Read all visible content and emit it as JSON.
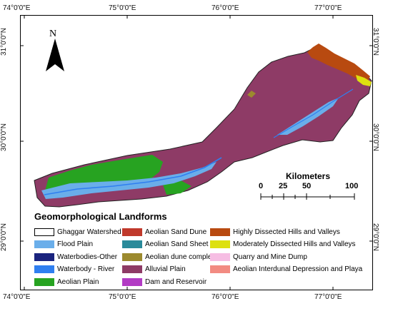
{
  "axes": {
    "top": [
      "74°0'0\"E",
      "75°0'0\"E",
      "76°0'0\"E",
      "77°0'0\"E"
    ],
    "bottom": [
      "74°0'0\"E",
      "75°0'0\"E",
      "76°0'0\"E",
      "77°0'0\"E"
    ],
    "left": [
      "31°0'0\"N",
      "30°0'0\"N",
      "29°0'0\"N"
    ],
    "right": [
      "31°0'0\"N",
      "30°0'0\"N",
      "29°0'0\"N"
    ]
  },
  "north": {
    "label": "N",
    "icon": "north-arrow-icon"
  },
  "scale": {
    "title": "Kilometers",
    "labels": [
      "0",
      "25",
      "50",
      "100"
    ]
  },
  "legend": {
    "title": "Geomorphological Landforms",
    "items": [
      {
        "label": "Ghaggar Watershed",
        "color": "#ffffff",
        "outline": true
      },
      {
        "label": "Flood Plain",
        "color": "#6aaeea"
      },
      {
        "label": "Waterbodies-Other",
        "color": "#1a237e"
      },
      {
        "label": "Waterbody - River",
        "color": "#2f7ff0"
      },
      {
        "label": "Aeolian Plain",
        "color": "#27a321"
      },
      {
        "label": "Aeolian Sand Dune",
        "color": "#c0392b"
      },
      {
        "label": "Aeolian Sand Sheet",
        "color": "#2a8a9a"
      },
      {
        "label": "Aeolian dune complex",
        "color": "#9c8a2e"
      },
      {
        "label": "Alluvial Plain",
        "color": "#8e3b66"
      },
      {
        "label": "Dam and Reservoir",
        "color": "#b23bc4"
      },
      {
        "label": "Highly Dissected Hills and Valleys",
        "color": "#b84a10"
      },
      {
        "label": "Moderately Dissected Hills and Valleys",
        "color": "#dde010"
      },
      {
        "label": "Quarry and Mine Dump",
        "color": "#f6bde3"
      },
      {
        "label": "Aeolian Interdunal Depression and Playa",
        "color": "#f28b82"
      }
    ]
  }
}
